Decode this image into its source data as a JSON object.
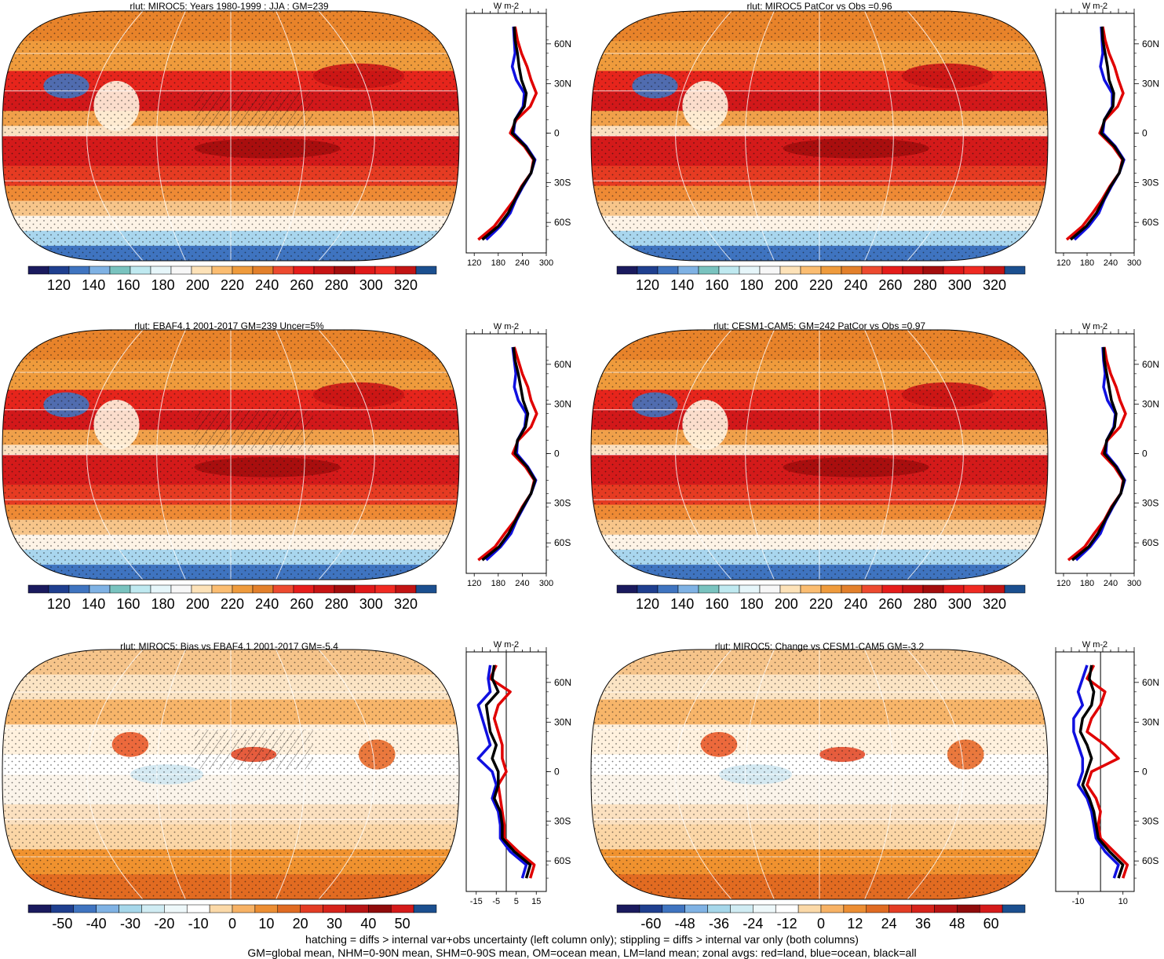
{
  "colors": {
    "abs_scale": [
      "#1a1a5e",
      "#1f3f8f",
      "#3f74c0",
      "#7fb2e4",
      "#79c3bf",
      "#bfe9f0",
      "#e6f6fa",
      "#f7f7f7",
      "#fde2b8",
      "#fbbd71",
      "#ef9b3c",
      "#e3802b",
      "#ed4a2f",
      "#e61d1b",
      "#c71414",
      "#a30d0d",
      "#e01919",
      "#f02a22",
      "#c21414",
      "#1b4f8f"
    ],
    "bias_scale": [
      "#1a1a5e",
      "#1f3f8f",
      "#3f74c0",
      "#7fb2e4",
      "#a6d7ea",
      "#d0ecf3",
      "#eef8fa",
      "#ffffff",
      "#fbd9a8",
      "#f7b265",
      "#ec8e33",
      "#e06b22",
      "#e33c24",
      "#d6231b",
      "#b71414",
      "#8f0b0b",
      "#d41a1a",
      "#1b4f8f"
    ],
    "profile_land": "#e00000",
    "profile_ocean": "#1010e0",
    "profile_all": "#000000"
  },
  "panels": [
    {
      "id": "miroc5-jja",
      "title": "rlut: MIROC5: Years 1980-1999 : JJA : GM=239",
      "colorbar_labels": [
        "120",
        "140",
        "160",
        "180",
        "200",
        "220",
        "240",
        "260",
        "280",
        "300",
        "320"
      ],
      "profile_ticks": [
        "120",
        "180",
        "240",
        "300"
      ],
      "profile_unit": "W m-2",
      "lat_labels": [
        "60N",
        "30N",
        "0",
        "30S",
        "60S"
      ]
    },
    {
      "id": "miroc5-patcor",
      "title": "rlut: MIROC5 PatCor vs Obs =0.96",
      "colorbar_labels": [
        "120",
        "140",
        "160",
        "180",
        "200",
        "220",
        "240",
        "260",
        "280",
        "300",
        "320"
      ],
      "profile_ticks": [
        "120",
        "180",
        "240",
        "300"
      ],
      "profile_unit": "W m-2",
      "lat_labels": [
        "60N",
        "30N",
        "0",
        "30S",
        "60S"
      ]
    },
    {
      "id": "ebaf",
      "title": "rlut: EBAF4.1 2001-2017 GM=239 Uncer=5%",
      "colorbar_labels": [
        "120",
        "140",
        "160",
        "180",
        "200",
        "220",
        "240",
        "260",
        "280",
        "300",
        "320"
      ],
      "profile_ticks": [
        "120",
        "180",
        "240",
        "300"
      ],
      "profile_unit": "W m-2",
      "lat_labels": [
        "60N",
        "30N",
        "0",
        "30S",
        "60S"
      ]
    },
    {
      "id": "cesm",
      "title": "rlut: CESM1-CAM5: GM=242 PatCor vs Obs =0.97",
      "colorbar_labels": [
        "120",
        "140",
        "160",
        "180",
        "200",
        "220",
        "240",
        "260",
        "280",
        "300",
        "320"
      ],
      "profile_ticks": [
        "120",
        "180",
        "240",
        "300"
      ],
      "profile_unit": "W m-2",
      "lat_labels": [
        "60N",
        "30N",
        "0",
        "30S",
        "60S"
      ]
    },
    {
      "id": "miroc5-bias",
      "title": "rlut: MIROC5: Bias vs EBAF4.1 2001-2017 GM=-5.4",
      "colorbar_labels": [
        "-50",
        "-40",
        "-30",
        "-20",
        "-10",
        "0",
        "10",
        "20",
        "30",
        "40",
        "50"
      ],
      "profile_ticks": [
        "-15",
        "-5",
        "5",
        "15"
      ],
      "profile_unit": "W m-2",
      "lat_labels": [
        "60N",
        "30N",
        "0",
        "30S",
        "60S"
      ]
    },
    {
      "id": "miroc5-change",
      "title": "rlut: MIROC5: Change vs CESM1-CAM5 GM=-3.2",
      "colorbar_labels": [
        "-60",
        "-48",
        "-36",
        "-24",
        "-12",
        "0",
        "12",
        "24",
        "36",
        "48",
        "60"
      ],
      "profile_ticks": [
        "-10",
        "10"
      ],
      "profile_unit": "W m-2",
      "lat_labels": [
        "60N",
        "30N",
        "0",
        "30S",
        "60S"
      ]
    }
  ],
  "footnote": {
    "line1": "hatching = diffs > internal var+obs uncertainty (left column only); stippling = diffs > internal var only (both columns)",
    "line2": "GM=global mean, NHM=0-90N mean, SHM=0-90S mean, OM=ocean mean, LM=land mean; zonal avgs: red=land, blue=ocean, black=all"
  },
  "chart_data": [
    {
      "type": "heatmap",
      "title": "rlut: MIROC5: Years 1980-1999 : JJA : GM=239",
      "projection": "Robinson",
      "zonal_profile": {
        "lat": [
          80,
          70,
          60,
          50,
          40,
          30,
          20,
          10,
          0,
          -10,
          -20,
          -30,
          -40,
          -50,
          -60,
          -70,
          -80
        ],
        "all": [
          220,
          222,
          228,
          232,
          238,
          250,
          245,
          222,
          215,
          248,
          270,
          262,
          240,
          222,
          205,
          180,
          140
        ],
        "land": [
          222,
          228,
          238,
          252,
          262,
          275,
          260,
          225,
          210,
          245,
          268,
          262,
          238,
          220,
          195,
          170,
          130
        ],
        "ocean": [
          218,
          220,
          222,
          215,
          225,
          245,
          242,
          222,
          218,
          250,
          272,
          262,
          242,
          224,
          210,
          185,
          150
        ],
        "xlim": [
          100,
          300
        ],
        "xticks": [
          120,
          180,
          240,
          300
        ],
        "unit": "W m-2"
      }
    },
    {
      "type": "heatmap",
      "title": "rlut: MIROC5 PatCor vs Obs =0.96",
      "projection": "Robinson",
      "zonal_profile": {
        "lat": [
          80,
          70,
          60,
          50,
          40,
          30,
          20,
          10,
          0,
          -10,
          -20,
          -30,
          -40,
          -50,
          -60,
          -70,
          -80
        ],
        "all": [
          218,
          220,
          226,
          232,
          236,
          248,
          246,
          224,
          216,
          250,
          272,
          262,
          240,
          222,
          204,
          178,
          138
        ],
        "land": [
          220,
          226,
          236,
          250,
          260,
          272,
          258,
          226,
          212,
          246,
          270,
          262,
          238,
          218,
          194,
          168,
          128
        ],
        "ocean": [
          216,
          218,
          220,
          214,
          224,
          244,
          244,
          224,
          220,
          252,
          274,
          262,
          242,
          224,
          210,
          184,
          148
        ],
        "xlim": [
          100,
          300
        ],
        "xticks": [
          120,
          180,
          240,
          300
        ],
        "unit": "W m-2"
      }
    },
    {
      "type": "heatmap",
      "title": "rlut: EBAF4.1 2001-2017 GM=239 Uncer=5%",
      "projection": "Robinson",
      "zonal_profile": {
        "lat": [
          80,
          70,
          60,
          50,
          40,
          30,
          20,
          10,
          0,
          -10,
          -20,
          -30,
          -40,
          -50,
          -60,
          -70,
          -80
        ],
        "all": [
          218,
          222,
          230,
          236,
          242,
          254,
          248,
          228,
          222,
          252,
          272,
          262,
          242,
          224,
          206,
          182,
          140
        ],
        "land": [
          220,
          230,
          240,
          254,
          262,
          276,
          262,
          230,
          216,
          248,
          270,
          262,
          240,
          222,
          196,
          172,
          130
        ],
        "ocean": [
          216,
          220,
          224,
          220,
          230,
          250,
          246,
          228,
          226,
          254,
          274,
          262,
          244,
          226,
          212,
          186,
          150
        ],
        "xlim": [
          100,
          300
        ],
        "xticks": [
          120,
          180,
          240,
          300
        ],
        "unit": "W m-2"
      }
    },
    {
      "type": "heatmap",
      "title": "rlut: CESM1-CAM5: GM=242 PatCor vs Obs =0.97",
      "projection": "Robinson",
      "zonal_profile": {
        "lat": [
          80,
          70,
          60,
          50,
          40,
          30,
          20,
          10,
          0,
          -10,
          -20,
          -30,
          -40,
          -50,
          -60,
          -70,
          -80
        ],
        "all": [
          222,
          224,
          230,
          236,
          242,
          254,
          250,
          230,
          224,
          254,
          274,
          266,
          244,
          226,
          208,
          184,
          142
        ],
        "land": [
          224,
          230,
          240,
          254,
          264,
          278,
          264,
          232,
          218,
          250,
          272,
          266,
          242,
          224,
          198,
          174,
          132
        ],
        "ocean": [
          220,
          222,
          226,
          222,
          232,
          252,
          248,
          230,
          228,
          256,
          276,
          266,
          246,
          228,
          214,
          188,
          152
        ],
        "xlim": [
          100,
          300
        ],
        "xticks": [
          120,
          180,
          240,
          300
        ],
        "unit": "W m-2"
      }
    },
    {
      "type": "heatmap",
      "title": "rlut: MIROC5: Bias vs EBAF4.1 2001-2017 GM=-5.4",
      "projection": "Robinson",
      "zonal_profile": {
        "lat": [
          80,
          70,
          60,
          50,
          40,
          30,
          20,
          10,
          0,
          -10,
          -20,
          -30,
          -40,
          -50,
          -60,
          -70,
          -80
        ],
        "all": [
          -6,
          -7,
          -4,
          -10,
          -9,
          -8,
          -5,
          -7,
          -4,
          -4,
          -6,
          -3,
          -2,
          -2,
          4,
          12,
          10
        ],
        "land": [
          -5,
          -8,
          2,
          -4,
          -6,
          -4,
          -2,
          -2,
          0,
          -4,
          -3,
          -2,
          -1,
          -1,
          6,
          14,
          12
        ],
        "ocean": [
          -8,
          -9,
          -8,
          -14,
          -12,
          -10,
          -8,
          -14,
          -7,
          -5,
          -7,
          -4,
          -3,
          -3,
          2,
          10,
          8
        ],
        "xlim": [
          -20,
          20
        ],
        "xticks": [
          -15,
          -5,
          5,
          15
        ],
        "unit": "W m-2"
      }
    },
    {
      "type": "heatmap",
      "title": "rlut: MIROC5: Change vs CESM1-CAM5 GM=-3.2",
      "projection": "Robinson",
      "zonal_profile": {
        "lat": [
          80,
          70,
          60,
          50,
          40,
          30,
          20,
          10,
          0,
          -10,
          -20,
          -30,
          -40,
          -50,
          -60,
          -70,
          -80
        ],
        "all": [
          -4,
          -5,
          -3,
          -4,
          -8,
          -9,
          -6,
          -4,
          -6,
          -8,
          -5,
          -3,
          -2,
          -1,
          4,
          10,
          8
        ],
        "land": [
          -3,
          -6,
          2,
          0,
          -4,
          -6,
          2,
          8,
          -4,
          -6,
          -2,
          0,
          -1,
          0,
          6,
          12,
          10
        ],
        "ocean": [
          -6,
          -8,
          -10,
          -8,
          -12,
          -12,
          -10,
          -8,
          -8,
          -10,
          -6,
          -4,
          -3,
          -2,
          2,
          8,
          6
        ],
        "xlim": [
          -20,
          15
        ],
        "xticks": [
          -10,
          10
        ],
        "unit": "W m-2"
      }
    }
  ]
}
